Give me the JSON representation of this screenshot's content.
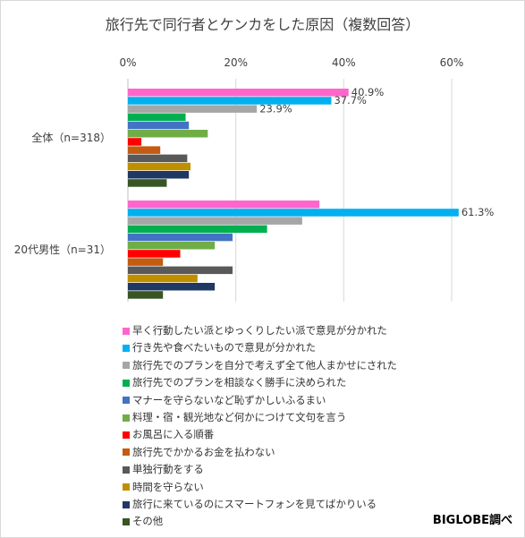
{
  "chart_data": {
    "type": "bar",
    "orientation": "horizontal",
    "title": "旅行先で同行者とケンカをした原因（複数回答）",
    "xlabel": "",
    "ylabel": "",
    "xlim": [
      0,
      65
    ],
    "x_ticks": [
      {
        "value": 0,
        "label": "0%"
      },
      {
        "value": 20,
        "label": "20%"
      },
      {
        "value": 40,
        "label": "40%"
      },
      {
        "value": 60,
        "label": "60%"
      }
    ],
    "grid": true,
    "legend_position": "bottom",
    "categories": [
      "全体（n=318）",
      "20代男性（n=31）"
    ],
    "series": [
      {
        "name": "早く行動したい派とゆっくりしたい派で意見が分かれた",
        "color": "#ff66cc",
        "values": [
          40.9,
          35.5
        ],
        "labels": [
          "40.9%",
          ""
        ]
      },
      {
        "name": "行き先や食べたいもので意見が分かれた",
        "color": "#00b0f0",
        "values": [
          37.7,
          61.3
        ],
        "labels": [
          "37.7%",
          "61.3%"
        ]
      },
      {
        "name": "旅行先でのプランを自分で考えず全て他人まかせにされた",
        "color": "#a6a6a6",
        "values": [
          23.9,
          32.3
        ],
        "labels": [
          "23.9%",
          ""
        ]
      },
      {
        "name": "旅行先でのプランを相談なく勝手に決められた",
        "color": "#00b050",
        "values": [
          10.7,
          25.8
        ],
        "labels": [
          "",
          ""
        ]
      },
      {
        "name": "マナーを守らないなど恥ずかしいふるまい",
        "color": "#4472c4",
        "values": [
          11.3,
          19.4
        ],
        "labels": [
          "",
          ""
        ]
      },
      {
        "name": "料理・宿・観光地など何かにつけて文句を言う",
        "color": "#70ad47",
        "values": [
          14.8,
          16.1
        ],
        "labels": [
          "",
          ""
        ]
      },
      {
        "name": "お風呂に入る順番",
        "color": "#ff0000",
        "values": [
          2.5,
          9.7
        ],
        "labels": [
          "",
          ""
        ]
      },
      {
        "name": "旅行先でかかるお金を払わない",
        "color": "#c55a11",
        "values": [
          6.0,
          6.5
        ],
        "labels": [
          "",
          ""
        ]
      },
      {
        "name": "単独行動をする",
        "color": "#595959",
        "values": [
          11.0,
          19.4
        ],
        "labels": [
          "",
          ""
        ]
      },
      {
        "name": "時間を守らない",
        "color": "#bf8f00",
        "values": [
          11.6,
          12.9
        ],
        "labels": [
          "",
          ""
        ]
      },
      {
        "name": "旅行に来ているのにスマートフォンを見てばかりいる",
        "color": "#203864",
        "values": [
          11.3,
          16.1
        ],
        "labels": [
          "",
          ""
        ]
      },
      {
        "name": "その他",
        "color": "#375623",
        "values": [
          7.2,
          6.5
        ],
        "labels": [
          "",
          ""
        ]
      }
    ]
  },
  "credit": "BIGLOBE調べ"
}
